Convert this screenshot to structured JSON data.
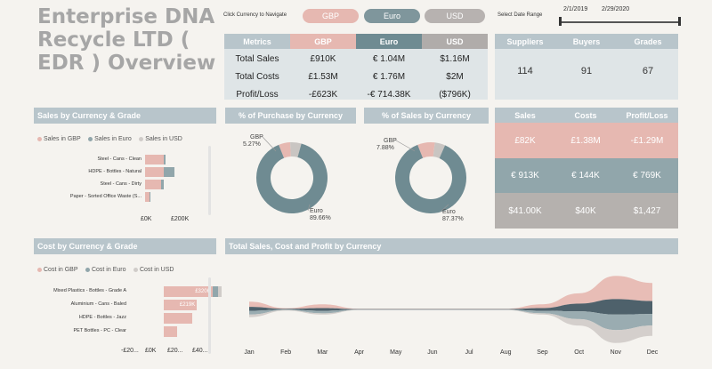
{
  "title": "Enterprise DNA Recycle LTD ( EDR ) Overview",
  "currency_nav": {
    "label": "Click Currency to Navigate",
    "buttons": [
      {
        "label": "GBP",
        "color": "#e6b8b1"
      },
      {
        "label": "Euro",
        "color": "#7f969c"
      },
      {
        "label": "USD",
        "color": "#b7b2b0"
      }
    ]
  },
  "date_range": {
    "label": "Select Date Range",
    "start": "2/1/2019",
    "end": "2/29/2020"
  },
  "metrics_table": {
    "headers": [
      "Metrics",
      "GBP",
      "Euro",
      "USD"
    ],
    "rows": [
      {
        "metric": "Total Sales",
        "gbp": "£910K",
        "euro": "€ 1.04M",
        "usd": "$1.16M"
      },
      {
        "metric": "Total Costs",
        "gbp": "£1.53M",
        "euro": "€ 1.76M",
        "usd": "$2M"
      },
      {
        "metric": "Profit/Loss",
        "gbp": "-£623K",
        "euro": "-€ 714.38K",
        "usd": "($796K)"
      }
    ]
  },
  "counts": {
    "headers": [
      "Suppliers",
      "Buyers",
      "Grades"
    ],
    "values": [
      "114",
      "91",
      "67"
    ]
  },
  "summary_table": {
    "headers": [
      "Sales",
      "Costs",
      "Profit/Loss"
    ],
    "rows": [
      {
        "sales": "£82K",
        "costs": "£1.38M",
        "profit": "-£1.29M",
        "color": "#e6b8b1"
      },
      {
        "sales": "€ 913K",
        "costs": "€ 144K",
        "profit": "€ 769K",
        "color": "#91a6ab"
      },
      {
        "sales": "$41.00K",
        "costs": "$40K",
        "profit": "$1,427",
        "color": "#b5b1ae"
      }
    ]
  },
  "sales_by_grade": {
    "title": "Sales by Currency & Grade",
    "legend": [
      "Sales in GBP",
      "Sales in Euro",
      "Sales in USD"
    ],
    "axis_ticks": [
      "£0K",
      "£200K"
    ]
  },
  "cost_by_grade": {
    "title": "Cost by Currency & Grade",
    "legend": [
      "Cost in GBP",
      "Cost in Euro",
      "Cost in USD"
    ],
    "axis_ticks": [
      "-£20...",
      "£0K",
      "£20...",
      "£40..."
    ]
  },
  "purchase_donut": {
    "title": "% of Purchase by Currency",
    "small_label": "GBP",
    "small_value": "5.27%",
    "large_label": "Euro",
    "large_value": "89.66%"
  },
  "sales_donut": {
    "title": "% of Sales by Currency",
    "small_label": "GBP",
    "small_value": "7.88%",
    "large_label": "Euro",
    "large_value": "87.37%"
  },
  "stream_chart": {
    "title": "Total Sales, Cost and Profit by Currency"
  },
  "chart_data": [
    {
      "type": "bar",
      "title": "Sales by Currency & Grade",
      "categories": [
        "Steel - Cans - Clean",
        "HDPE - Bottles - Natural",
        "Steel - Cans - Dirty",
        "Paper - Sorted Office Waste (S..."
      ],
      "series": [
        {
          "name": "Sales in GBP",
          "values": [
            60,
            60,
            50,
            15
          ],
          "color": "#e6b8b1"
        },
        {
          "name": "Sales in Euro",
          "values": [
            5,
            35,
            10,
            3
          ],
          "color": "#91a6ab"
        },
        {
          "name": "Sales in USD",
          "values": [
            0,
            0,
            0,
            0
          ],
          "color": "#d0ccc9"
        }
      ],
      "xlim": [
        0,
        300
      ]
    },
    {
      "type": "bar",
      "title": "Cost by Currency & Grade",
      "categories": [
        "Mixed Plastics - Bottles - Grade A",
        "Aluminium - Cans - Baled",
        "HDPE - Bottles - Jazz",
        "PET Bottles - PC - Clear"
      ],
      "series": [
        {
          "name": "Cost in GBP",
          "values": [
            320,
            219,
            190,
            90
          ],
          "color": "#e6b8b1",
          "labels": [
            "£320K",
            "£219K",
            "",
            ""
          ]
        },
        {
          "name": "Cost in Euro",
          "values": [
            40,
            0,
            0,
            0
          ],
          "color": "#91a6ab",
          "labels": [
            "",
            "",
            "",
            ""
          ]
        },
        {
          "name": "Cost in USD",
          "values": [
            20,
            0,
            0,
            0
          ],
          "color": "#d0ccc9",
          "labels": [
            "",
            "",
            "",
            ""
          ]
        }
      ],
      "xlim": [
        -220,
        480
      ]
    },
    {
      "type": "pie",
      "title": "% of Purchase by Currency",
      "categories": [
        "GBP",
        "Euro",
        "USD"
      ],
      "values": [
        5.27,
        89.66,
        5.07
      ],
      "colors": [
        "#e6b8b1",
        "#6f8b92",
        "#c9c5c2"
      ]
    },
    {
      "type": "pie",
      "title": "% of Sales by Currency",
      "categories": [
        "GBP",
        "Euro",
        "USD"
      ],
      "values": [
        7.88,
        87.37,
        4.75
      ],
      "colors": [
        "#e6b8b1",
        "#6f8b92",
        "#c9c5c2"
      ]
    },
    {
      "type": "area",
      "title": "Total Sales, Cost and Profit by Currency",
      "categories": [
        "Jan",
        "Feb",
        "Mar",
        "Apr",
        "May",
        "Jun",
        "Jul",
        "Aug",
        "Sep",
        "Oct",
        "Nov",
        "Dec"
      ],
      "series": [
        {
          "name": "band-1",
          "values": [
            4,
            0.5,
            3,
            0.3,
            0.3,
            0.3,
            0.3,
            0.3,
            3,
            8,
            18,
            14
          ],
          "color": "#e6b8b1"
        },
        {
          "name": "band-2",
          "values": [
            3,
            0.5,
            2,
            0.3,
            0.3,
            0.3,
            0.3,
            0.3,
            2,
            6,
            12,
            10
          ],
          "color": "#3f5560"
        },
        {
          "name": "band-3",
          "values": [
            3,
            0.5,
            2,
            0.3,
            0.3,
            0.3,
            0.3,
            0.3,
            2,
            6,
            12,
            9
          ],
          "color": "#91a6ab"
        },
        {
          "name": "band-4",
          "values": [
            2,
            0.4,
            1,
            0.2,
            0.2,
            0.2,
            0.2,
            0.2,
            1,
            5,
            10,
            8
          ],
          "color": "#d0ccc9"
        }
      ]
    }
  ]
}
